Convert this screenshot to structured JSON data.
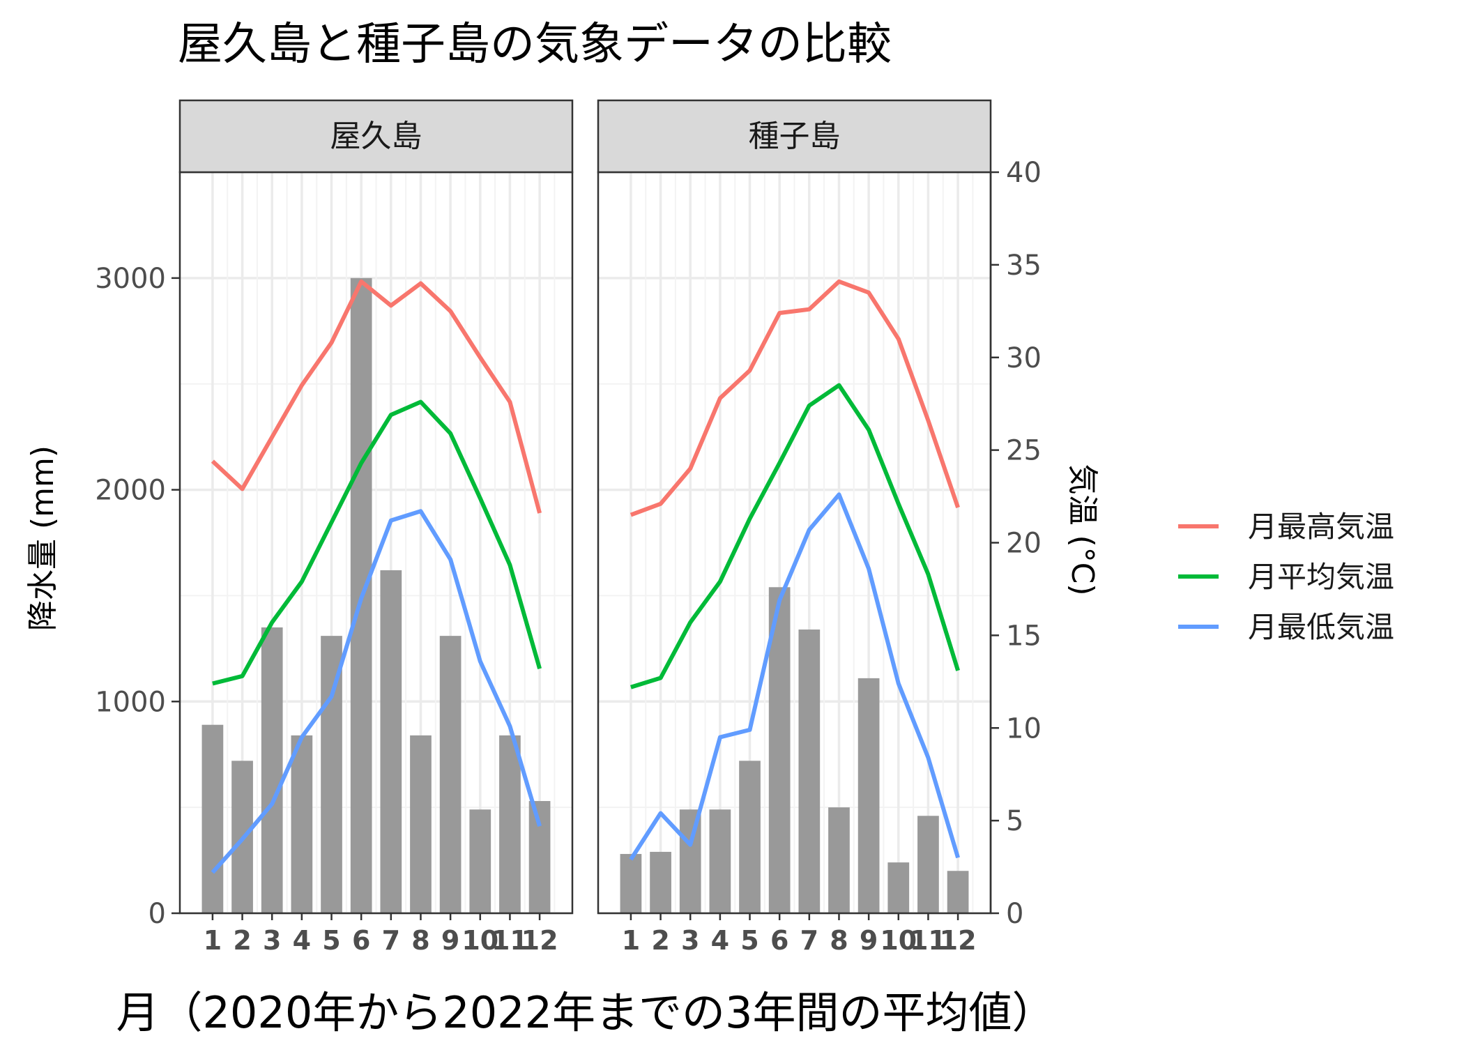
{
  "chart_data": {
    "type": "bar",
    "title": "屋久島と種子島の気象データの比較",
    "xlabel": "月（2020年から2022年までの3年間の平均値）",
    "ylabel": "降水量 (mm)",
    "y2label": "気温 (°C)",
    "ylim": [
      0,
      3500
    ],
    "y2lim": [
      0,
      40
    ],
    "yticks": [
      "0",
      "1000",
      "2000",
      "3000"
    ],
    "y2ticks": [
      "0",
      "5",
      "10",
      "15",
      "20",
      "25",
      "30",
      "35",
      "40"
    ],
    "categories": [
      "1",
      "2",
      "3",
      "4",
      "5",
      "6",
      "7",
      "8",
      "9",
      "10",
      "11",
      "12"
    ],
    "grid": true,
    "legend_position": "right",
    "legend": [
      {
        "label": "月最高気温",
        "color": "#F8766D"
      },
      {
        "label": "月平均気温",
        "color": "#00BA38"
      },
      {
        "label": "月最低気温",
        "color": "#619CFF"
      }
    ],
    "bar_color": "#999999",
    "panels": [
      {
        "name": "屋久島",
        "precipitation": [
          890,
          720,
          1350,
          840,
          1310,
          3000,
          1620,
          840,
          1310,
          490,
          840,
          530
        ],
        "series": [
          {
            "name": "月最高気温",
            "color": "#F8766D",
            "values": [
              24.4,
              22.9,
              25.7,
              28.5,
              30.8,
              34.1,
              32.8,
              34.0,
              32.5,
              30.0,
              27.6,
              21.6
            ]
          },
          {
            "name": "月平均気温",
            "color": "#00BA38",
            "values": [
              12.4,
              12.8,
              15.7,
              17.9,
              21.1,
              24.3,
              26.9,
              27.6,
              25.9,
              22.4,
              18.8,
              13.2
            ]
          },
          {
            "name": "月最低気温",
            "color": "#619CFF",
            "values": [
              2.2,
              4.0,
              5.9,
              9.5,
              11.7,
              17.0,
              21.2,
              21.7,
              19.1,
              13.6,
              10.1,
              4.7
            ]
          }
        ]
      },
      {
        "name": "種子島",
        "precipitation": [
          280,
          290,
          490,
          490,
          720,
          1540,
          1340,
          500,
          1110,
          240,
          460,
          200
        ],
        "series": [
          {
            "name": "月最高気温",
            "color": "#F8766D",
            "values": [
              21.5,
              22.1,
              24.0,
              27.8,
              29.3,
              32.4,
              32.6,
              34.1,
              33.5,
              31.0,
              26.6,
              21.9
            ]
          },
          {
            "name": "月平均気温",
            "color": "#00BA38",
            "values": [
              12.2,
              12.7,
              15.7,
              17.9,
              21.3,
              24.3,
              27.4,
              28.5,
              26.1,
              22.1,
              18.3,
              13.1
            ]
          },
          {
            "name": "月最低気温",
            "color": "#619CFF",
            "values": [
              2.9,
              5.4,
              3.7,
              9.5,
              9.9,
              16.9,
              20.7,
              22.6,
              18.6,
              12.4,
              8.4,
              3.0
            ]
          }
        ]
      }
    ]
  }
}
